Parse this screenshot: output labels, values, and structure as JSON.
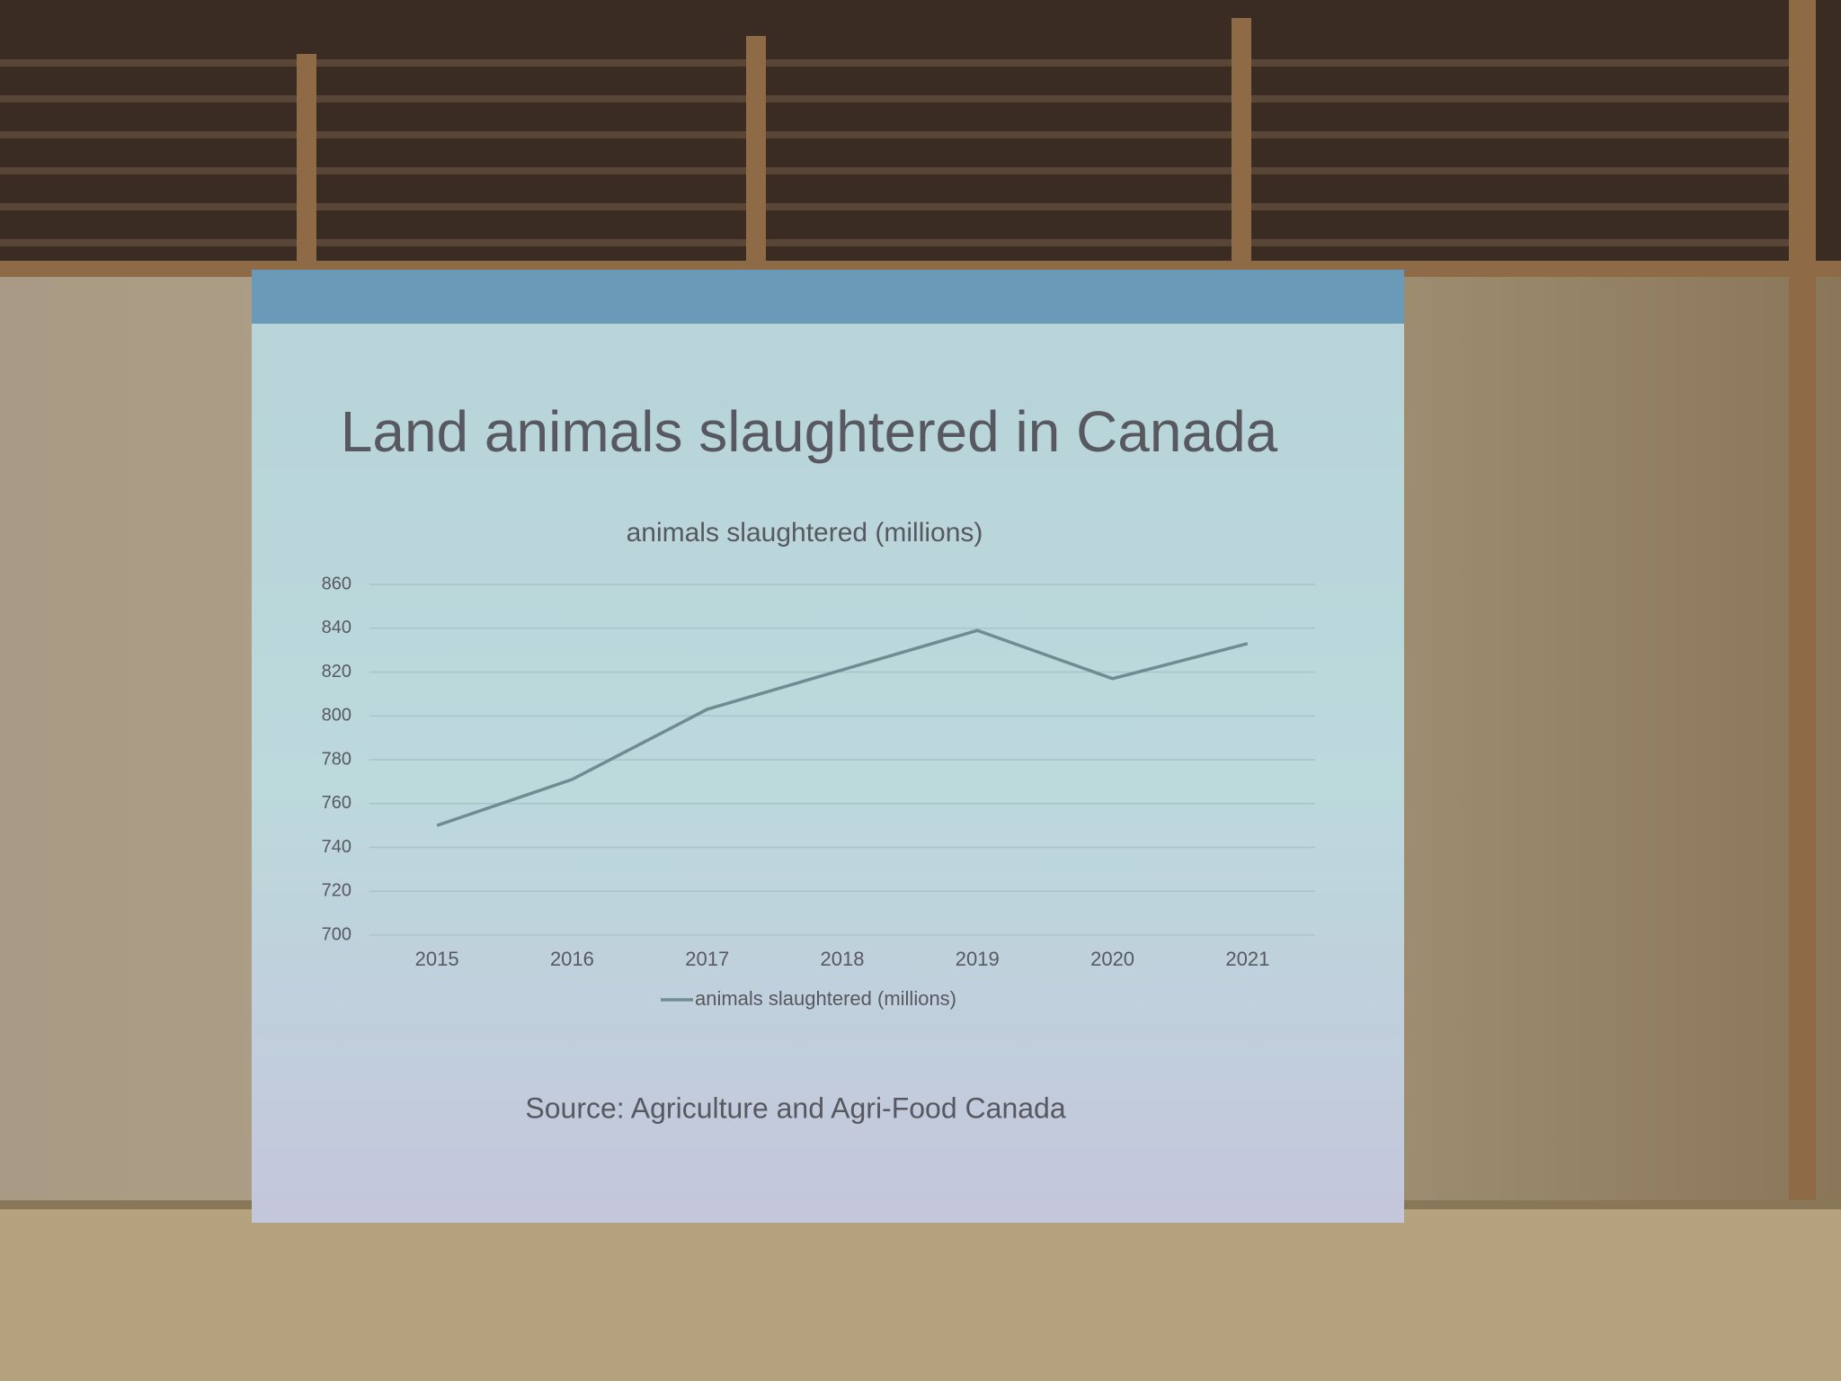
{
  "chart_data": {
    "type": "line",
    "title": "Land animals slaughtered in Canada",
    "subtitle": "animals slaughtered (millions)",
    "categories": [
      "2015",
      "2016",
      "2017",
      "2018",
      "2019",
      "2020",
      "2021"
    ],
    "series": [
      {
        "name": "animals slaughtered (millions)",
        "color": "#6f8c92",
        "values": [
          750,
          771,
          803,
          821,
          839,
          817,
          833
        ]
      }
    ],
    "ylim": [
      700,
      860
    ],
    "yticks": [
      700,
      720,
      740,
      760,
      780,
      800,
      820,
      840,
      860
    ],
    "grid": true,
    "legend": "bottom",
    "source": "Source: Agriculture and Agri-Food Canada"
  }
}
